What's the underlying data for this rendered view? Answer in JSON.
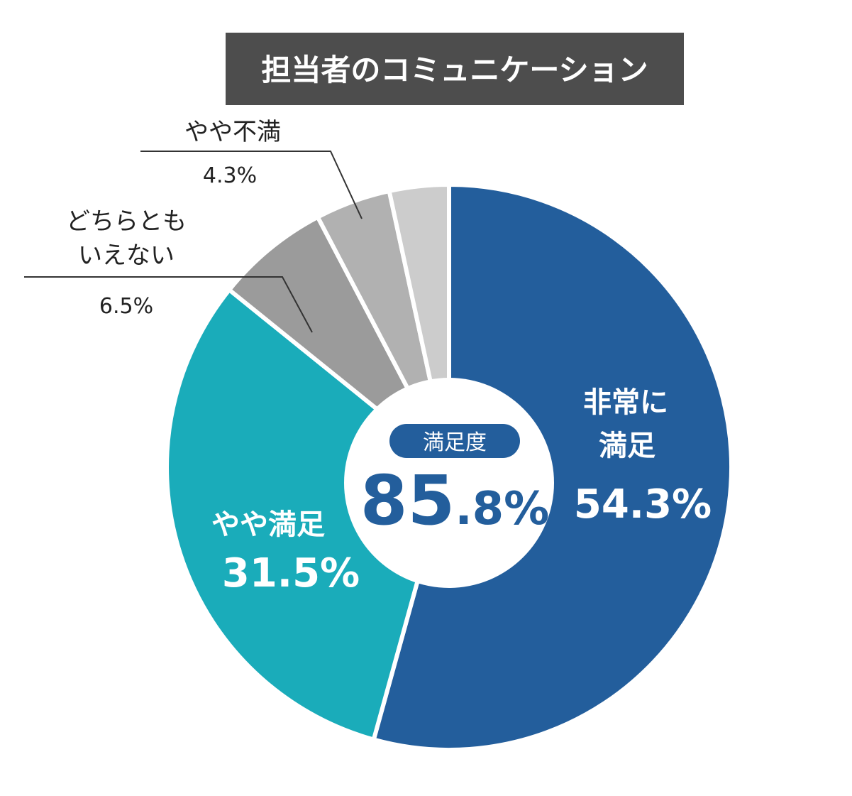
{
  "chart_data": {
    "type": "pie",
    "title": "担当者のコミュニケーション",
    "slices": [
      {
        "label_lines": [
          "非常に",
          "満足"
        ],
        "value": 54.3,
        "value_text": "54.3%",
        "color": "#235e9c"
      },
      {
        "label_lines": [
          "やや満足"
        ],
        "value": 31.5,
        "value_text": "31.5%",
        "color": "#1aacba"
      },
      {
        "label_lines": [
          "どちらとも",
          "いえない"
        ],
        "value": 6.5,
        "value_text": "6.5%",
        "color": "#9b9b9b"
      },
      {
        "label_lines": [
          "やや不満"
        ],
        "value": 4.3,
        "value_text": "4.3%",
        "color": "#b1b1b1"
      },
      {
        "label_lines": [],
        "value": 3.4,
        "value_text": "",
        "color": "#cccccc"
      }
    ],
    "center": {
      "badge": "満足度",
      "value_main": "85",
      "value_sub": ".8%",
      "badge_color": "#235e9c"
    },
    "title_bg": "#4d4d4d"
  }
}
